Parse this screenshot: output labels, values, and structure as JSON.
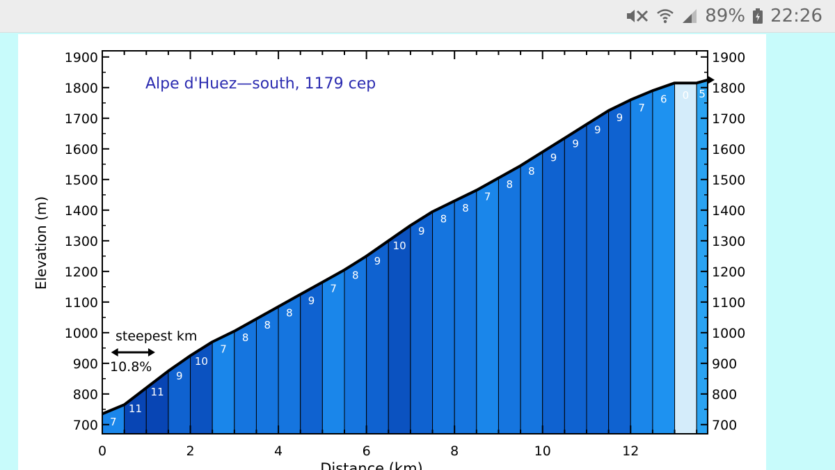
{
  "status_bar": {
    "battery": "89%",
    "time": "22:26",
    "icons": [
      "mute-icon",
      "wifi-icon",
      "signal-icon",
      "battery-icon"
    ]
  },
  "chart_data": {
    "type": "area",
    "title": "Alpe d'Huez—south, 1179 cep",
    "xlabel": "Distance (km)",
    "ylabel": "Elevation (m)",
    "xlim": [
      0,
      13.75
    ],
    "ylim": [
      670,
      1920
    ],
    "x_ticks": [
      0,
      2,
      4,
      6,
      8,
      10,
      12
    ],
    "y_ticks": [
      700,
      800,
      900,
      1000,
      1100,
      1200,
      1300,
      1400,
      1500,
      1600,
      1700,
      1800,
      1900
    ],
    "segment_km": 0.5,
    "elevation_profile": {
      "x": [
        0,
        0.5,
        1.0,
        1.5,
        2.0,
        2.5,
        3.0,
        3.5,
        4.0,
        4.5,
        5.0,
        5.5,
        6.0,
        6.5,
        7.0,
        7.5,
        8.0,
        8.5,
        9.0,
        9.5,
        10.0,
        10.5,
        11.0,
        11.5,
        12.0,
        12.5,
        13.0,
        13.5,
        13.75
      ],
      "y": [
        735,
        765,
        820,
        875,
        925,
        970,
        1005,
        1045,
        1085,
        1125,
        1165,
        1205,
        1250,
        1300,
        1350,
        1395,
        1430,
        1465,
        1505,
        1545,
        1590,
        1635,
        1680,
        1725,
        1760,
        1790,
        1815,
        1815,
        1825
      ]
    },
    "segment_gradients": [
      7,
      11,
      11,
      9,
      10,
      7,
      8,
      8,
      8,
      9,
      7,
      8,
      9,
      10,
      9,
      8,
      8,
      7,
      8,
      8,
      9,
      9,
      9,
      9,
      7,
      6,
      0,
      5
    ],
    "annotations": {
      "steepest_label": "steepest km",
      "steepest_value": "10.8%",
      "steepest_range_km": [
        0.2,
        1.2
      ]
    },
    "grid": false,
    "legend": "none"
  }
}
